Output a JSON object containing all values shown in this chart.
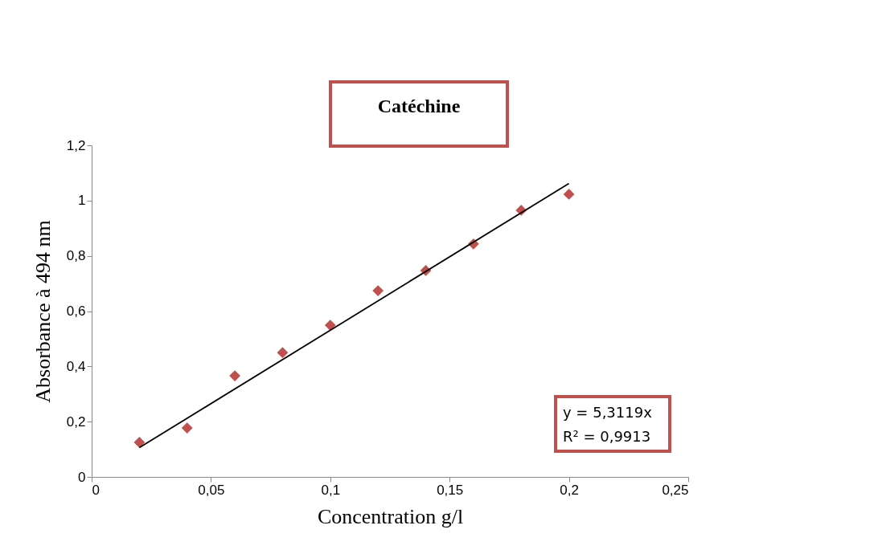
{
  "chart_data": {
    "type": "scatter",
    "title": "Catéchine",
    "xlabel": "Concentration  g/l",
    "ylabel": "Absorbance à 494 nm",
    "x": [
      0.02,
      0.04,
      0.06,
      0.08,
      0.1,
      0.12,
      0.14,
      0.16,
      0.18,
      0.2
    ],
    "series": [
      {
        "color": "#c0504d",
        "marker": "diamond",
        "values": [
          0.125,
          0.177,
          0.366,
          0.45,
          0.549,
          0.674,
          0.747,
          0.843,
          0.965,
          1.023
        ]
      },
      {
        "type": "line",
        "color": "#000000",
        "x": [
          0.02,
          0.2
        ],
        "values": [
          0.106,
          1.062
        ]
      }
    ],
    "annotations": [
      "y = 5,3119x",
      "R² = 0,9913"
    ],
    "xlim": [
      0,
      0.25
    ],
    "ylim": [
      0,
      1.2
    ],
    "xticks": [
      0,
      {
        "value": 0.05,
        "label": "0,05"
      },
      {
        "value": 0.1,
        "label": "0,1"
      },
      {
        "value": 0.15,
        "label": "0,15"
      },
      {
        "value": 0.2,
        "label": "0,2"
      },
      {
        "value": 0.25,
        "label": "0,25"
      }
    ],
    "yticks": [
      0,
      {
        "value": 0.2,
        "label": "0,2"
      },
      {
        "value": 0.4,
        "label": "0,4"
      },
      {
        "value": 0.6,
        "label": "0,6"
      },
      {
        "value": 0.8,
        "label": "0,8"
      },
      1,
      {
        "value": 1.2,
        "label": "1,2"
      }
    ],
    "grid": false
  }
}
